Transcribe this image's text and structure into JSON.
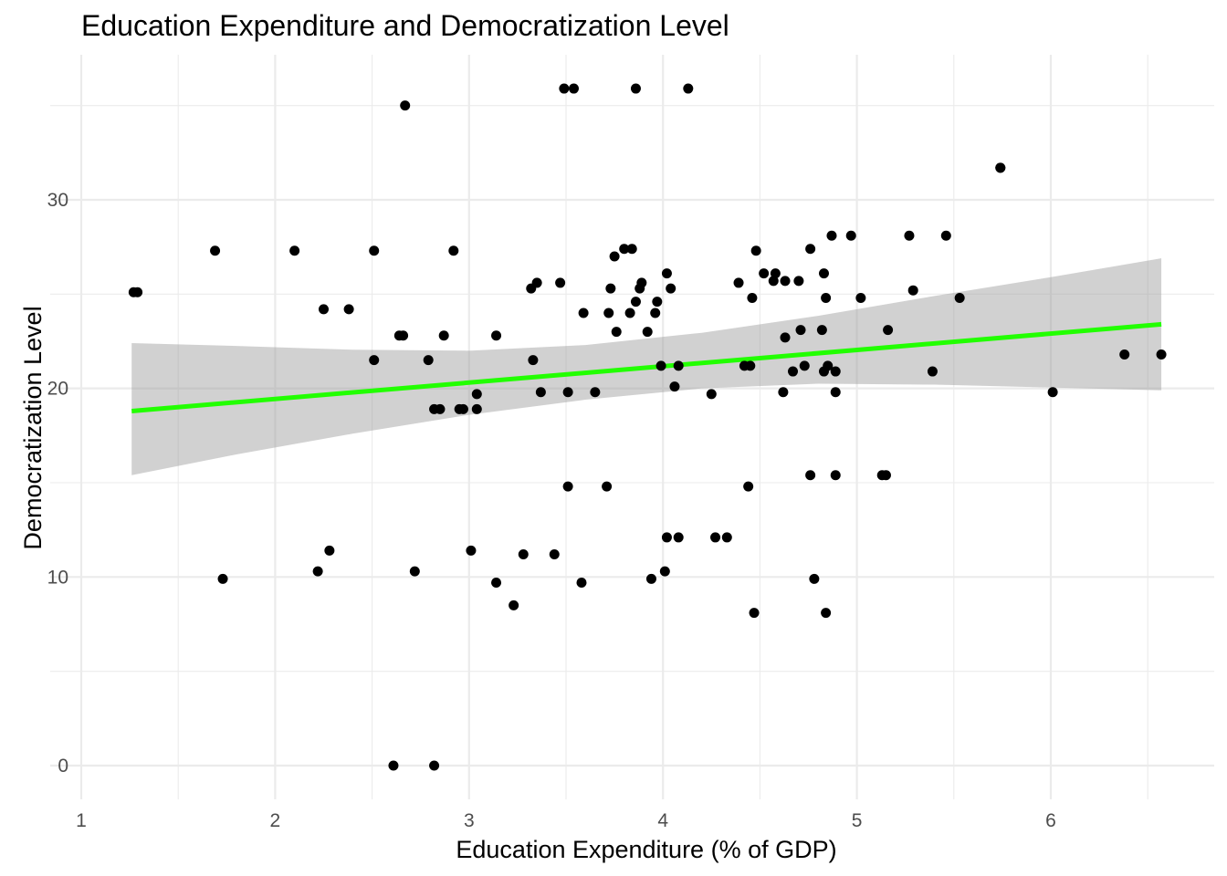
{
  "chart_data": {
    "type": "scatter",
    "title": "Education Expenditure and Democratization Level",
    "xlabel": "Education Expenditure (% of GDP)",
    "ylabel": "Democratization Level",
    "xlim": [
      1,
      6.6
    ],
    "ylim": [
      -1.5,
      37.5
    ],
    "x_ticks": [
      1,
      2,
      3,
      4,
      5,
      6
    ],
    "y_ticks": [
      0,
      10,
      20,
      30
    ],
    "grid": true,
    "legend": "none",
    "point_color": "#000000",
    "fit_line_color": "#22ff00",
    "confidence_band_color": "#999999",
    "points": [
      {
        "x": 1.27,
        "y": 25.1
      },
      {
        "x": 1.29,
        "y": 25.1
      },
      {
        "x": 1.69,
        "y": 27.3
      },
      {
        "x": 1.73,
        "y": 9.9
      },
      {
        "x": 2.1,
        "y": 27.3
      },
      {
        "x": 2.22,
        "y": 10.3
      },
      {
        "x": 2.25,
        "y": 24.2
      },
      {
        "x": 2.28,
        "y": 11.4
      },
      {
        "x": 2.38,
        "y": 24.2
      },
      {
        "x": 2.51,
        "y": 27.3
      },
      {
        "x": 2.51,
        "y": 21.5
      },
      {
        "x": 2.61,
        "y": 0.0
      },
      {
        "x": 2.64,
        "y": 22.8
      },
      {
        "x": 2.66,
        "y": 22.8
      },
      {
        "x": 2.67,
        "y": 35.0
      },
      {
        "x": 2.72,
        "y": 10.3
      },
      {
        "x": 2.79,
        "y": 21.5
      },
      {
        "x": 2.82,
        "y": 0.0
      },
      {
        "x": 2.82,
        "y": 18.9
      },
      {
        "x": 2.85,
        "y": 18.9
      },
      {
        "x": 2.87,
        "y": 22.8
      },
      {
        "x": 2.92,
        "y": 27.3
      },
      {
        "x": 2.95,
        "y": 18.9
      },
      {
        "x": 2.97,
        "y": 18.9
      },
      {
        "x": 3.01,
        "y": 11.4
      },
      {
        "x": 3.04,
        "y": 19.7
      },
      {
        "x": 3.04,
        "y": 18.9
      },
      {
        "x": 3.14,
        "y": 22.8
      },
      {
        "x": 3.14,
        "y": 9.7
      },
      {
        "x": 3.23,
        "y": 8.5
      },
      {
        "x": 3.28,
        "y": 11.2
      },
      {
        "x": 3.32,
        "y": 25.3
      },
      {
        "x": 3.33,
        "y": 21.5
      },
      {
        "x": 3.35,
        "y": 25.6
      },
      {
        "x": 3.37,
        "y": 19.8
      },
      {
        "x": 3.44,
        "y": 11.2
      },
      {
        "x": 3.47,
        "y": 25.6
      },
      {
        "x": 3.49,
        "y": 35.9
      },
      {
        "x": 3.51,
        "y": 14.8
      },
      {
        "x": 3.51,
        "y": 19.8
      },
      {
        "x": 3.54,
        "y": 35.9
      },
      {
        "x": 3.58,
        "y": 9.7
      },
      {
        "x": 3.59,
        "y": 24.0
      },
      {
        "x": 3.65,
        "y": 19.8
      },
      {
        "x": 3.71,
        "y": 14.8
      },
      {
        "x": 3.72,
        "y": 24.0
      },
      {
        "x": 3.73,
        "y": 25.3
      },
      {
        "x": 3.75,
        "y": 27.0
      },
      {
        "x": 3.76,
        "y": 23.0
      },
      {
        "x": 3.8,
        "y": 27.4
      },
      {
        "x": 3.83,
        "y": 24.0
      },
      {
        "x": 3.84,
        "y": 27.4
      },
      {
        "x": 3.86,
        "y": 24.6
      },
      {
        "x": 3.86,
        "y": 35.9
      },
      {
        "x": 3.88,
        "y": 25.3
      },
      {
        "x": 3.89,
        "y": 25.6
      },
      {
        "x": 3.92,
        "y": 23.0
      },
      {
        "x": 3.94,
        "y": 9.9
      },
      {
        "x": 3.96,
        "y": 24.0
      },
      {
        "x": 3.97,
        "y": 24.6
      },
      {
        "x": 3.99,
        "y": 21.2
      },
      {
        "x": 4.01,
        "y": 10.3
      },
      {
        "x": 4.02,
        "y": 26.1
      },
      {
        "x": 4.02,
        "y": 12.1
      },
      {
        "x": 4.04,
        "y": 25.3
      },
      {
        "x": 4.06,
        "y": 20.1
      },
      {
        "x": 4.08,
        "y": 21.2
      },
      {
        "x": 4.08,
        "y": 12.1
      },
      {
        "x": 4.13,
        "y": 35.9
      },
      {
        "x": 4.25,
        "y": 19.7
      },
      {
        "x": 4.27,
        "y": 12.1
      },
      {
        "x": 4.33,
        "y": 12.1
      },
      {
        "x": 4.39,
        "y": 25.6
      },
      {
        "x": 4.42,
        "y": 21.2
      },
      {
        "x": 4.44,
        "y": 14.8
      },
      {
        "x": 4.45,
        "y": 21.2
      },
      {
        "x": 4.46,
        "y": 24.8
      },
      {
        "x": 4.47,
        "y": 8.1
      },
      {
        "x": 4.48,
        "y": 27.3
      },
      {
        "x": 4.52,
        "y": 26.1
      },
      {
        "x": 4.57,
        "y": 25.7
      },
      {
        "x": 4.58,
        "y": 26.1
      },
      {
        "x": 4.62,
        "y": 19.8
      },
      {
        "x": 4.63,
        "y": 22.7
      },
      {
        "x": 4.63,
        "y": 25.7
      },
      {
        "x": 4.67,
        "y": 20.9
      },
      {
        "x": 4.7,
        "y": 25.7
      },
      {
        "x": 4.71,
        "y": 23.1
      },
      {
        "x": 4.73,
        "y": 21.2
      },
      {
        "x": 4.76,
        "y": 27.4
      },
      {
        "x": 4.76,
        "y": 15.4
      },
      {
        "x": 4.78,
        "y": 9.9
      },
      {
        "x": 4.82,
        "y": 23.1
      },
      {
        "x": 4.83,
        "y": 26.1
      },
      {
        "x": 4.83,
        "y": 20.9
      },
      {
        "x": 4.84,
        "y": 8.1
      },
      {
        "x": 4.84,
        "y": 24.8
      },
      {
        "x": 4.85,
        "y": 21.2
      },
      {
        "x": 4.87,
        "y": 28.1
      },
      {
        "x": 4.89,
        "y": 20.9
      },
      {
        "x": 4.89,
        "y": 19.8
      },
      {
        "x": 4.89,
        "y": 15.4
      },
      {
        "x": 4.97,
        "y": 28.1
      },
      {
        "x": 5.02,
        "y": 24.8
      },
      {
        "x": 5.13,
        "y": 15.4
      },
      {
        "x": 5.15,
        "y": 15.4
      },
      {
        "x": 5.16,
        "y": 23.1
      },
      {
        "x": 5.27,
        "y": 28.1
      },
      {
        "x": 5.29,
        "y": 25.2
      },
      {
        "x": 5.39,
        "y": 20.9
      },
      {
        "x": 5.46,
        "y": 28.1
      },
      {
        "x": 5.53,
        "y": 24.8
      },
      {
        "x": 5.74,
        "y": 31.7
      },
      {
        "x": 5.74,
        "y": 31.7
      },
      {
        "x": 6.01,
        "y": 19.8
      },
      {
        "x": 6.38,
        "y": 21.8
      },
      {
        "x": 6.57,
        "y": 21.8
      }
    ],
    "fit_line": {
      "x": [
        1.26,
        6.57
      ],
      "y": [
        18.8,
        23.4
      ]
    },
    "confidence_band": {
      "x": [
        1.26,
        1.8,
        2.4,
        3.0,
        3.6,
        4.2,
        4.8,
        5.4,
        6.0,
        6.57
      ],
      "upper": [
        22.4,
        22.25,
        22.05,
        22.0,
        22.3,
        22.95,
        23.85,
        24.9,
        25.9,
        26.9
      ],
      "lower": [
        15.4,
        16.5,
        17.6,
        18.6,
        19.4,
        20.0,
        20.25,
        20.2,
        20.05,
        19.9
      ]
    }
  }
}
